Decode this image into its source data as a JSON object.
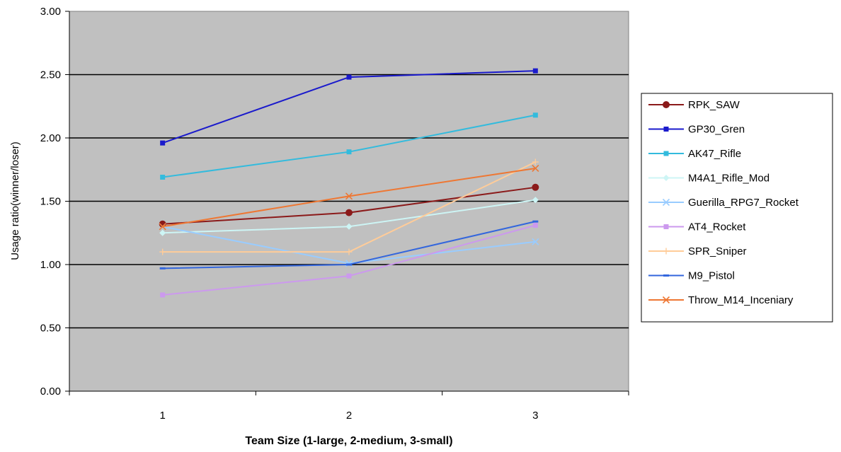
{
  "chart_data": {
    "type": "line",
    "title": "",
    "xlabel": "Team Size (1-large, 2-medium, 3-small)",
    "ylabel": "Usage ratio(winner/loser)",
    "categories": [
      "1",
      "2",
      "3"
    ],
    "ylim": [
      0,
      3
    ],
    "yticks": [
      "0.00",
      "0.50",
      "1.00",
      "1.50",
      "2.00",
      "2.50",
      "3.00"
    ],
    "grid": true,
    "legend_position": "right",
    "plot_background": "#c0c0c0",
    "series": [
      {
        "name": "RPK_SAW",
        "values": [
          1.32,
          1.41,
          1.61
        ],
        "color": "#8b1a1a",
        "marker": "circle"
      },
      {
        "name": "GP30_Gren",
        "values": [
          1.96,
          2.48,
          2.53
        ],
        "color": "#1a1acc",
        "marker": "square"
      },
      {
        "name": "AK47_Rifle",
        "values": [
          1.69,
          1.89,
          2.18
        ],
        "color": "#33bbdd",
        "marker": "square"
      },
      {
        "name": "M4A1_Rifle_Mod",
        "values": [
          1.25,
          1.3,
          1.51
        ],
        "color": "#cdf5f5",
        "marker": "diamond"
      },
      {
        "name": "Guerilla_RPG7_Rocket",
        "values": [
          1.3,
          1.01,
          1.18
        ],
        "color": "#99ccff",
        "marker": "x"
      },
      {
        "name": "AT4_Rocket",
        "values": [
          0.76,
          0.91,
          1.31
        ],
        "color": "#cc99ee",
        "marker": "square"
      },
      {
        "name": "SPR_Sniper",
        "values": [
          1.1,
          1.1,
          1.81
        ],
        "color": "#ffcc99",
        "marker": "plus"
      },
      {
        "name": "M9_Pistol",
        "values": [
          0.97,
          1.0,
          1.34
        ],
        "color": "#3366dd",
        "marker": "dash"
      },
      {
        "name": "Throw_M14_Inceniary",
        "values": [
          1.3,
          1.54,
          1.76
        ],
        "color": "#ee7733",
        "marker": "x"
      }
    ]
  }
}
